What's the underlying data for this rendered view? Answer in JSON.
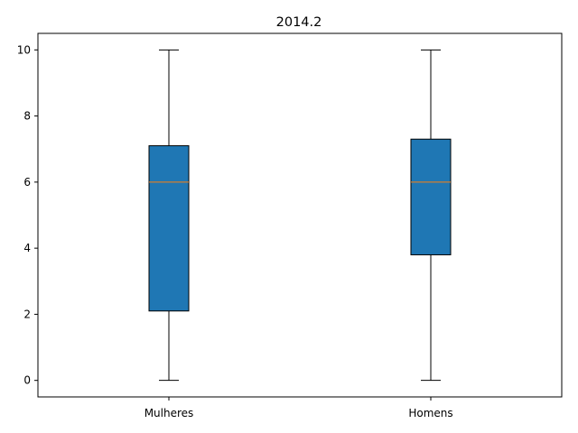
{
  "chart_data": {
    "type": "boxplot",
    "title": "2014.2",
    "xlabel": "",
    "ylabel": "",
    "categories": [
      "Mulheres",
      "Homens"
    ],
    "boxes": [
      {
        "label": "Mulheres",
        "whisker_low": 0,
        "q1": 2.1,
        "median": 6,
        "q3": 7.1,
        "whisker_high": 10
      },
      {
        "label": "Homens",
        "whisker_low": 0,
        "q1": 3.8,
        "median": 6,
        "q3": 7.3,
        "whisker_high": 10
      }
    ],
    "ylim": [
      -0.5,
      10.5
    ],
    "yticks": [
      "0",
      "2",
      "4",
      "6",
      "8",
      "10"
    ],
    "grid": false,
    "legend": "none",
    "colors": {
      "box_fill": "#1f77b4",
      "median": "#ff7f0e",
      "lines": "#000000"
    }
  }
}
